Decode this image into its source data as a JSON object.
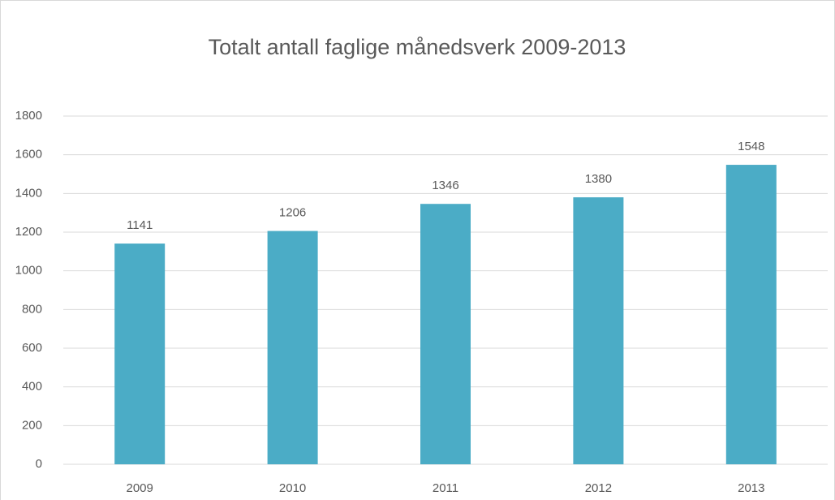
{
  "chart_data": {
    "type": "bar",
    "title": "Totalt antall faglige månedsverk 2009-2013",
    "categories": [
      "2009",
      "2010",
      "2011",
      "2012",
      "2013"
    ],
    "values": [
      1141,
      1206,
      1346,
      1380,
      1548
    ],
    "color": "#4bacc6",
    "ylim": [
      0,
      1800
    ],
    "yticks": [
      0,
      200,
      400,
      600,
      800,
      1000,
      1200,
      1400,
      1600,
      1800
    ],
    "grid": true
  }
}
